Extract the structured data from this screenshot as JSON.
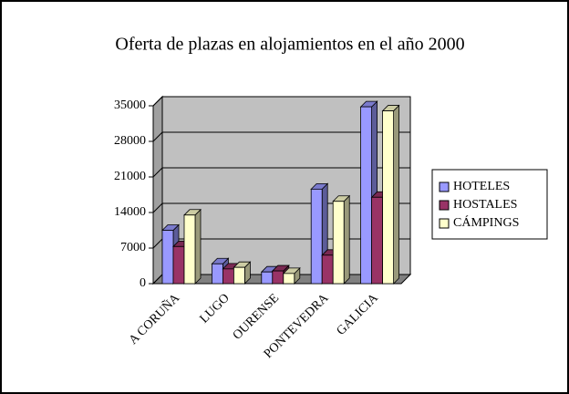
{
  "chart_data": {
    "type": "bar3d",
    "title": "Oferta de plazas en alojamientos en el año 2000",
    "categories": [
      "A CORUÑA",
      "LUGO",
      "OURENSE",
      "PONTEVEDRA",
      "GALICIA"
    ],
    "series": [
      {
        "name": "HOTELES",
        "color": "#9999ff",
        "values": [
          10500,
          3900,
          2300,
          18600,
          34800
        ]
      },
      {
        "name": "HOSTALES",
        "color": "#993366",
        "values": [
          7300,
          2900,
          2500,
          5600,
          17000
        ]
      },
      {
        "name": "CÁMPINGS",
        "color": "#ffffcc",
        "values": [
          13500,
          3200,
          2000,
          16200,
          34000
        ]
      }
    ],
    "ylim": [
      0,
      35000
    ],
    "yticks": [
      0,
      7000,
      14000,
      21000,
      28000,
      35000
    ],
    "grid": true,
    "legend": "right"
  }
}
